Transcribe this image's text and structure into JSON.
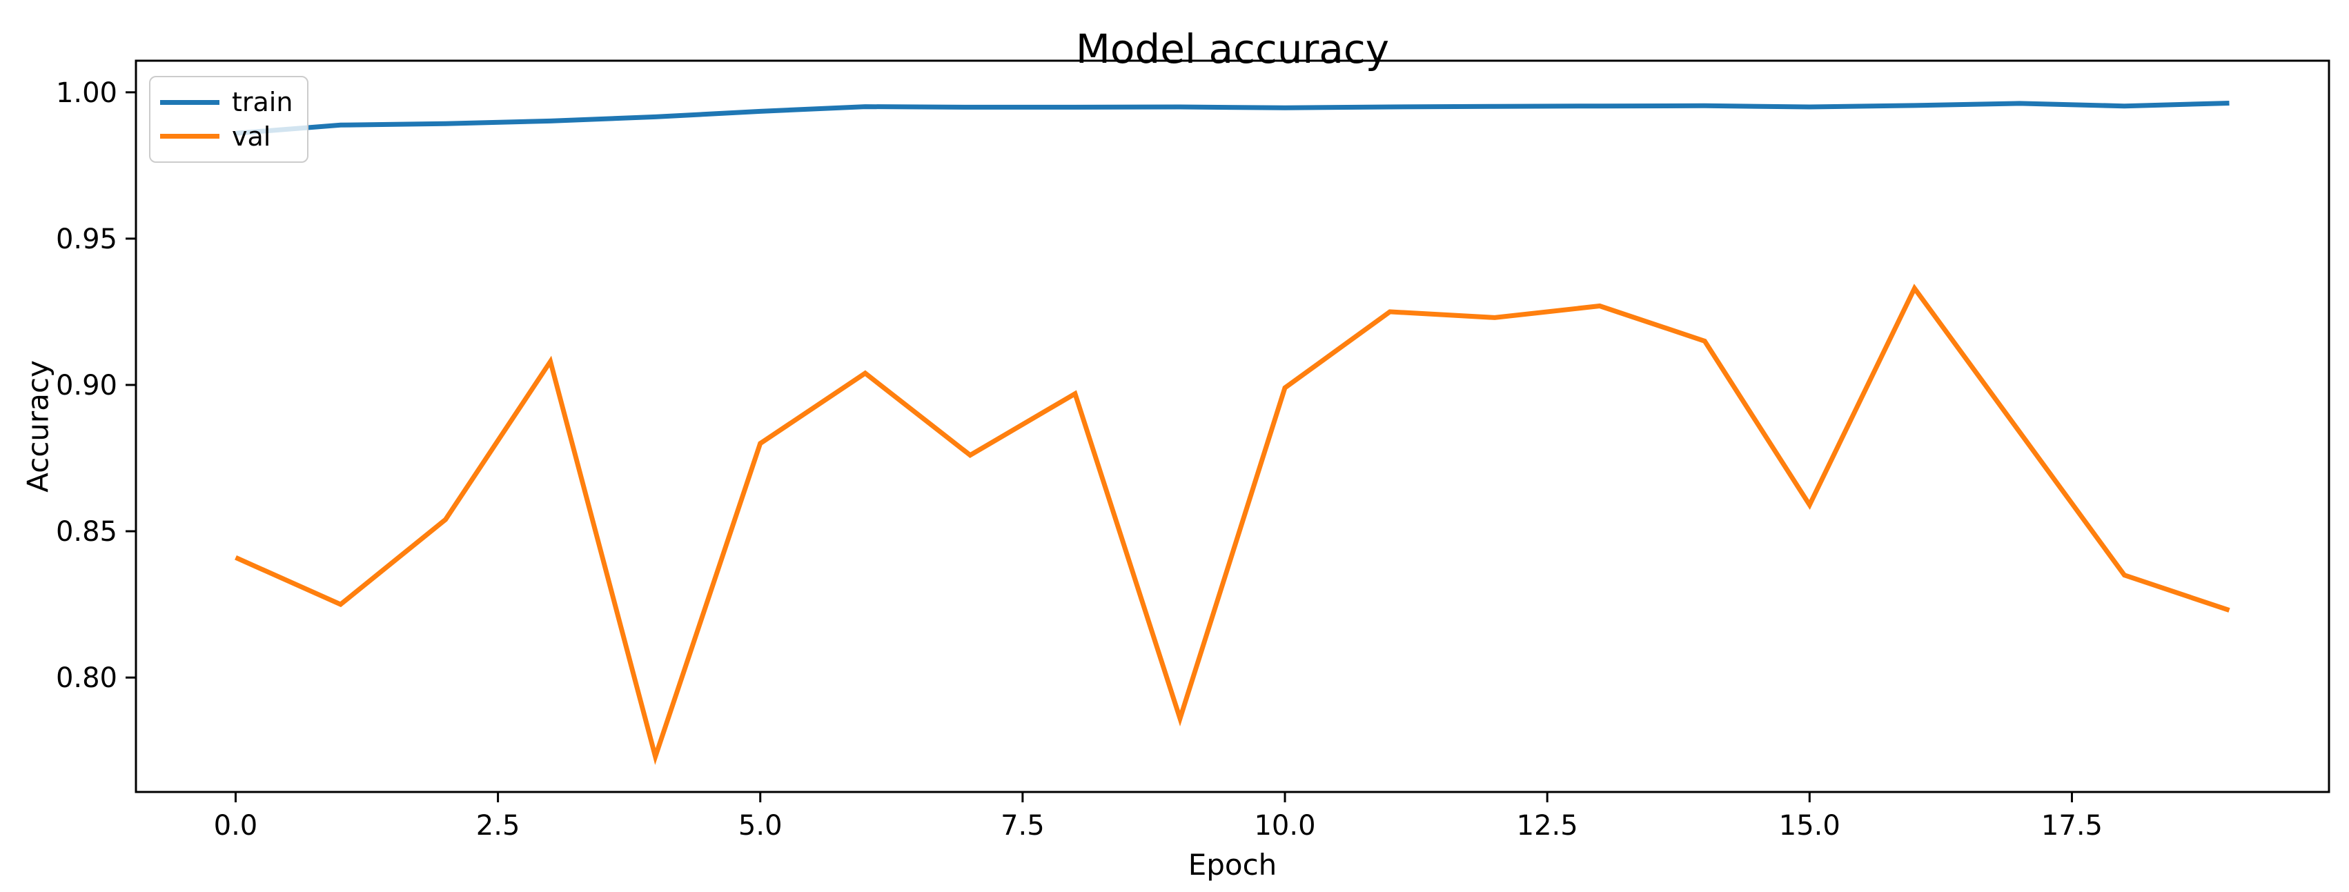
{
  "chart_data": {
    "type": "line",
    "title": "Model accuracy",
    "xlabel": "Epoch",
    "ylabel": "Accuracy",
    "x": [
      0,
      1,
      2,
      3,
      4,
      5,
      6,
      7,
      8,
      9,
      10,
      11,
      12,
      13,
      14,
      15,
      16,
      17,
      18,
      19
    ],
    "series": [
      {
        "name": "train",
        "color": "#1f77b4",
        "values": [
          0.986,
          0.9888,
          0.9893,
          0.9902,
          0.9916,
          0.9935,
          0.9951,
          0.9949,
          0.9949,
          0.995,
          0.9947,
          0.995,
          0.9952,
          0.9953,
          0.9954,
          0.995,
          0.9955,
          0.9962,
          0.9953,
          0.9963
        ]
      },
      {
        "name": "val",
        "color": "#ff7f0e",
        "values": [
          0.841,
          0.825,
          0.854,
          0.908,
          0.773,
          0.88,
          0.904,
          0.876,
          0.897,
          0.786,
          0.899,
          0.925,
          0.923,
          0.927,
          0.915,
          0.859,
          0.933,
          0.884,
          0.835,
          0.823
        ]
      }
    ],
    "xlim": [
      -0.95,
      19.95
    ],
    "ylim": [
      0.7609,
      1.0108
    ],
    "xticks": {
      "values": [
        0,
        2.5,
        5,
        7.5,
        10,
        12.5,
        15,
        17.5
      ],
      "labels": [
        "0.0",
        "2.5",
        "5.0",
        "7.5",
        "10.0",
        "12.5",
        "15.0",
        "17.5"
      ]
    },
    "yticks": {
      "values": [
        0.8,
        0.85,
        0.9,
        0.95,
        1.0
      ],
      "labels": [
        "0.80",
        "0.85",
        "0.90",
        "0.95",
        "1.00"
      ]
    },
    "grid": false,
    "legend_position": "upper left",
    "axis_color": "#000000"
  }
}
